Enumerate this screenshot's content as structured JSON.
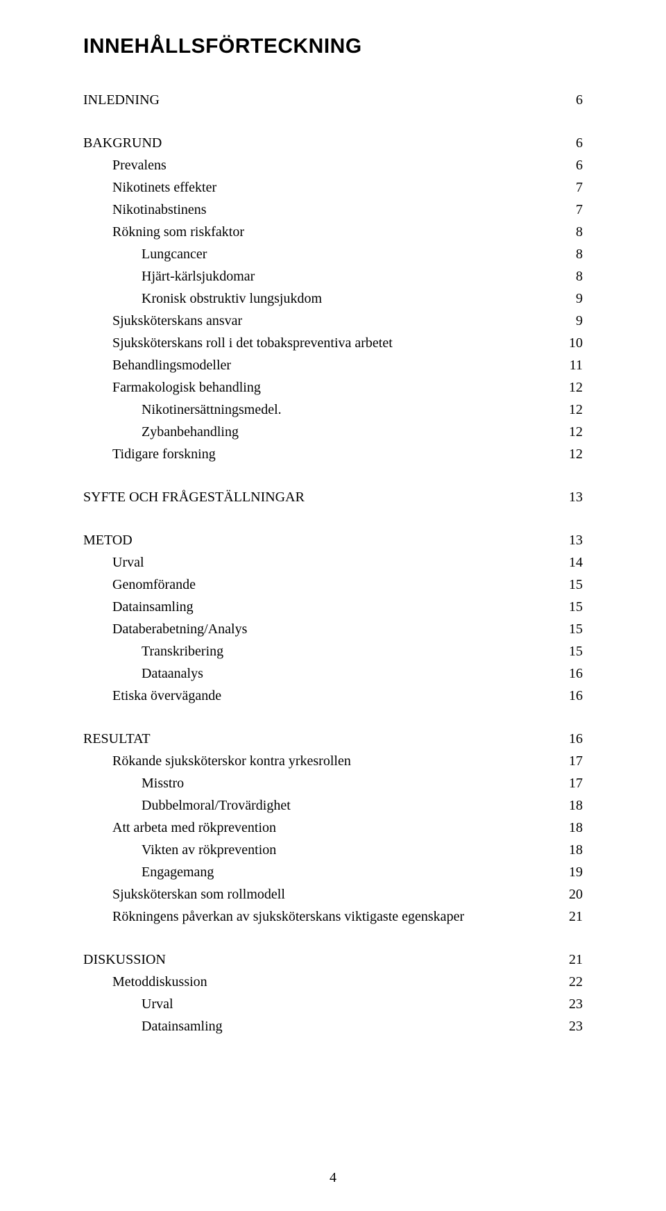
{
  "heading": "INNEHÅLLSFÖRTECKNING",
  "page_number": "4",
  "sections": [
    {
      "gap": false,
      "rows": [
        {
          "label": "INLEDNING",
          "page": "6",
          "indent": 0
        }
      ]
    },
    {
      "gap": true,
      "rows": [
        {
          "label": "BAKGRUND",
          "page": "6",
          "indent": 0
        },
        {
          "label": "Prevalens",
          "page": "6",
          "indent": 1
        },
        {
          "label": "Nikotinets effekter",
          "page": "7",
          "indent": 1
        },
        {
          "label": "Nikotinabstinens",
          "page": "7",
          "indent": 1
        },
        {
          "label": "Rökning som riskfaktor",
          "page": "8",
          "indent": 1
        },
        {
          "label": "Lungcancer",
          "page": "8",
          "indent": 2
        },
        {
          "label": "Hjärt-kärlsjukdomar",
          "page": "8",
          "indent": 2
        },
        {
          "label": "Kronisk obstruktiv lungsjukdom",
          "page": "9",
          "indent": 2
        },
        {
          "label": "Sjuksköterskans ansvar",
          "page": "9",
          "indent": 1
        },
        {
          "label": "Sjuksköterskans roll i det tobakspreventiva arbetet",
          "page": "10",
          "indent": 1
        },
        {
          "label": "Behandlingsmodeller",
          "page": "11",
          "indent": 1
        },
        {
          "label": "Farmakologisk behandling",
          "page": "12",
          "indent": 1
        },
        {
          "label": "Nikotinersättningsmedel.",
          "page": "12",
          "indent": 2
        },
        {
          "label": "Zybanbehandling",
          "page": "12",
          "indent": 2
        },
        {
          "label": "Tidigare forskning",
          "page": "12",
          "indent": 1
        }
      ]
    },
    {
      "gap": true,
      "rows": [
        {
          "label": "SYFTE OCH FRÅGESTÄLLNINGAR",
          "page": "13",
          "indent": 0
        }
      ]
    },
    {
      "gap": true,
      "rows": [
        {
          "label": "METOD",
          "page": "13",
          "indent": 0
        },
        {
          "label": "Urval",
          "page": "14",
          "indent": 1
        },
        {
          "label": "Genomförande",
          "page": "15",
          "indent": 1
        },
        {
          "label": "Datainsamling",
          "page": "15",
          "indent": 1
        },
        {
          "label": "Databerabetning/Analys",
          "page": "15",
          "indent": 1
        },
        {
          "label": "Transkribering",
          "page": "15",
          "indent": 2
        },
        {
          "label": "Dataanalys",
          "page": "16",
          "indent": 2
        },
        {
          "label": "Etiska övervägande",
          "page": "16",
          "indent": 1
        }
      ]
    },
    {
      "gap": true,
      "rows": [
        {
          "label": "RESULTAT",
          "page": "16",
          "indent": 0
        },
        {
          "label": "Rökande sjuksköterskor kontra yrkesrollen",
          "page": "17",
          "indent": 1
        },
        {
          "label": "Misstro",
          "page": "17",
          "indent": 2
        },
        {
          "label": "Dubbelmoral/Trovärdighet",
          "page": "18",
          "indent": 2
        },
        {
          "label": "Att arbeta med rökprevention",
          "page": "18",
          "indent": 1
        },
        {
          "label": "Vikten av rökprevention",
          "page": "18",
          "indent": 2
        },
        {
          "label": "Engagemang",
          "page": "19",
          "indent": 2
        },
        {
          "label": "Sjuksköterskan som rollmodell",
          "page": "20",
          "indent": 1
        },
        {
          "label": "Rökningens påverkan av sjuksköterskans viktigaste egenskaper",
          "page": "21",
          "indent": 1
        }
      ]
    },
    {
      "gap": true,
      "rows": [
        {
          "label": "DISKUSSION",
          "page": "21",
          "indent": 0
        },
        {
          "label": "Metoddiskussion",
          "page": "22",
          "indent": 1
        },
        {
          "label": "Urval",
          "page": "23",
          "indent": 2
        },
        {
          "label": "Datainsamling",
          "page": "23",
          "indent": 2
        }
      ]
    }
  ]
}
